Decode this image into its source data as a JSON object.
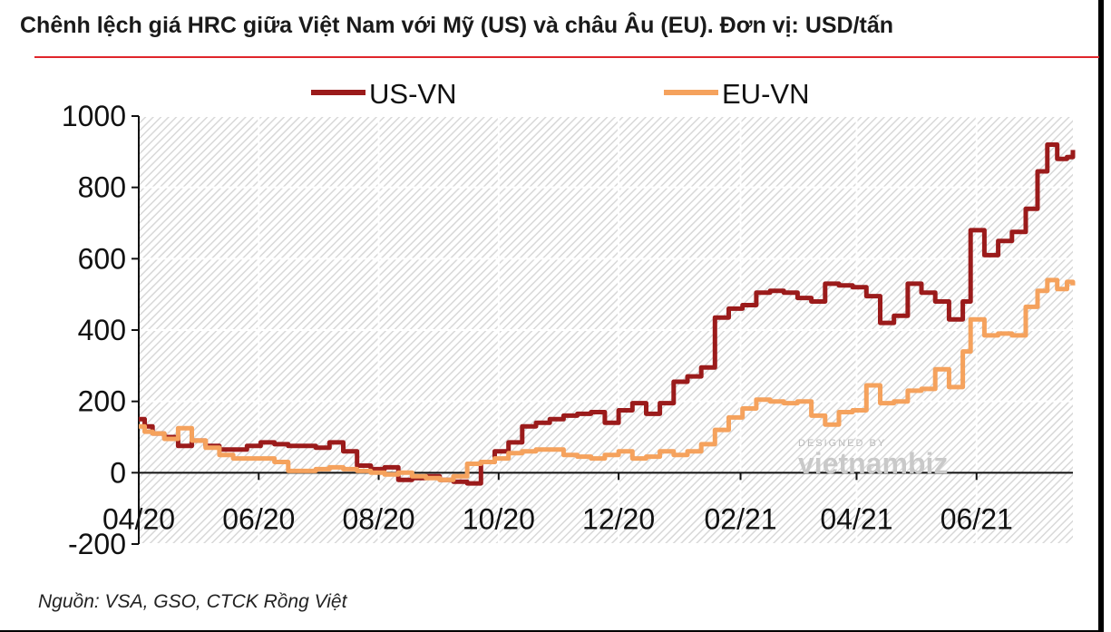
{
  "title": "Chênh lệch giá HRC giữa Việt Nam với Mỹ (US) và châu Âu (EU). Đơn vị: USD/tấn",
  "source": "Nguồn: VSA, GSO, CTCK Rồng Việt",
  "watermark": {
    "small": "DESIGNED BY",
    "big": "vietnambiz"
  },
  "colors": {
    "us_vn": "#9b1b1b",
    "eu_vn": "#f5a25d",
    "title_rule": "#e0262b"
  },
  "chart_data": {
    "type": "line",
    "title": "Chênh lệch giá HRC giữa Việt Nam với Mỹ (US) và châu Âu (EU). Đơn vị: USD/tấn",
    "xlabel": "",
    "ylabel": "",
    "ylim": [
      -200,
      1000
    ],
    "yticks": [
      -200,
      0,
      200,
      400,
      600,
      800,
      1000
    ],
    "yticklabels": [
      "-200",
      "0",
      "200",
      "400",
      "600",
      "800",
      "1000"
    ],
    "xlim": [
      "2020-04-01",
      "2021-07-20"
    ],
    "xticks": [
      "2020-04-01",
      "2020-06-01",
      "2020-08-01",
      "2020-10-01",
      "2020-12-01",
      "2021-02-01",
      "2021-04-01",
      "2021-06-01"
    ],
    "xticklabels": [
      "04/20",
      "06/20",
      "08/20",
      "10/20",
      "12/20",
      "02/21",
      "04/21",
      "06/21"
    ],
    "grid": true,
    "legend": "top",
    "series": [
      {
        "name": "US-VN",
        "points": [
          [
            "2020-04-01",
            150
          ],
          [
            "2020-04-04",
            130
          ],
          [
            "2020-04-08",
            110
          ],
          [
            "2020-04-14",
            100
          ],
          [
            "2020-04-21",
            75
          ],
          [
            "2020-04-28",
            90
          ],
          [
            "2020-05-05",
            75
          ],
          [
            "2020-05-12",
            65
          ],
          [
            "2020-05-19",
            65
          ],
          [
            "2020-05-26",
            75
          ],
          [
            "2020-06-02",
            85
          ],
          [
            "2020-06-09",
            80
          ],
          [
            "2020-06-16",
            75
          ],
          [
            "2020-06-23",
            75
          ],
          [
            "2020-06-30",
            70
          ],
          [
            "2020-07-07",
            85
          ],
          [
            "2020-07-14",
            60
          ],
          [
            "2020-07-21",
            20
          ],
          [
            "2020-07-28",
            10
          ],
          [
            "2020-08-04",
            15
          ],
          [
            "2020-08-11",
            -20
          ],
          [
            "2020-08-18",
            -15
          ],
          [
            "2020-08-25",
            -10
          ],
          [
            "2020-09-01",
            -20
          ],
          [
            "2020-09-08",
            -25
          ],
          [
            "2020-09-15",
            -30
          ],
          [
            "2020-09-22",
            30
          ],
          [
            "2020-09-29",
            60
          ],
          [
            "2020-10-06",
            85
          ],
          [
            "2020-10-13",
            130
          ],
          [
            "2020-10-20",
            140
          ],
          [
            "2020-10-27",
            150
          ],
          [
            "2020-11-03",
            160
          ],
          [
            "2020-11-10",
            165
          ],
          [
            "2020-11-17",
            170
          ],
          [
            "2020-11-24",
            140
          ],
          [
            "2020-12-01",
            175
          ],
          [
            "2020-12-08",
            195
          ],
          [
            "2020-12-15",
            165
          ],
          [
            "2020-12-22",
            195
          ],
          [
            "2020-12-29",
            255
          ],
          [
            "2021-01-05",
            270
          ],
          [
            "2021-01-12",
            295
          ],
          [
            "2021-01-19",
            435
          ],
          [
            "2021-01-26",
            460
          ],
          [
            "2021-02-02",
            470
          ],
          [
            "2021-02-09",
            505
          ],
          [
            "2021-02-16",
            510
          ],
          [
            "2021-02-23",
            505
          ],
          [
            "2021-03-02",
            490
          ],
          [
            "2021-03-09",
            480
          ],
          [
            "2021-03-16",
            530
          ],
          [
            "2021-03-23",
            525
          ],
          [
            "2021-03-30",
            520
          ],
          [
            "2021-04-06",
            495
          ],
          [
            "2021-04-13",
            420
          ],
          [
            "2021-04-20",
            440
          ],
          [
            "2021-04-27",
            530
          ],
          [
            "2021-05-04",
            505
          ],
          [
            "2021-05-11",
            480
          ],
          [
            "2021-05-18",
            430
          ],
          [
            "2021-05-25",
            480
          ],
          [
            "2021-05-29",
            680
          ],
          [
            "2021-06-05",
            610
          ],
          [
            "2021-06-12",
            650
          ],
          [
            "2021-06-19",
            675
          ],
          [
            "2021-06-26",
            740
          ],
          [
            "2021-07-02",
            845
          ],
          [
            "2021-07-07",
            920
          ],
          [
            "2021-07-12",
            880
          ],
          [
            "2021-07-17",
            885
          ],
          [
            "2021-07-20",
            905
          ]
        ]
      },
      {
        "name": "EU-VN",
        "points": [
          [
            "2020-04-01",
            130
          ],
          [
            "2020-04-04",
            115
          ],
          [
            "2020-04-08",
            110
          ],
          [
            "2020-04-14",
            95
          ],
          [
            "2020-04-21",
            125
          ],
          [
            "2020-04-28",
            90
          ],
          [
            "2020-05-05",
            70
          ],
          [
            "2020-05-12",
            50
          ],
          [
            "2020-05-19",
            40
          ],
          [
            "2020-05-26",
            40
          ],
          [
            "2020-06-02",
            40
          ],
          [
            "2020-06-09",
            30
          ],
          [
            "2020-06-16",
            5
          ],
          [
            "2020-06-23",
            5
          ],
          [
            "2020-06-30",
            10
          ],
          [
            "2020-07-07",
            15
          ],
          [
            "2020-07-14",
            10
          ],
          [
            "2020-07-21",
            5
          ],
          [
            "2020-07-28",
            0
          ],
          [
            "2020-08-04",
            -5
          ],
          [
            "2020-08-11",
            0
          ],
          [
            "2020-08-18",
            -10
          ],
          [
            "2020-08-25",
            -15
          ],
          [
            "2020-09-01",
            -20
          ],
          [
            "2020-09-08",
            -10
          ],
          [
            "2020-09-15",
            25
          ],
          [
            "2020-09-22",
            30
          ],
          [
            "2020-09-29",
            40
          ],
          [
            "2020-10-06",
            55
          ],
          [
            "2020-10-13",
            60
          ],
          [
            "2020-10-20",
            65
          ],
          [
            "2020-10-27",
            65
          ],
          [
            "2020-11-03",
            50
          ],
          [
            "2020-11-10",
            45
          ],
          [
            "2020-11-17",
            40
          ],
          [
            "2020-11-24",
            50
          ],
          [
            "2020-12-01",
            60
          ],
          [
            "2020-12-08",
            40
          ],
          [
            "2020-12-15",
            45
          ],
          [
            "2020-12-22",
            60
          ],
          [
            "2020-12-29",
            50
          ],
          [
            "2021-01-05",
            60
          ],
          [
            "2021-01-12",
            80
          ],
          [
            "2021-01-19",
            120
          ],
          [
            "2021-01-26",
            155
          ],
          [
            "2021-02-02",
            180
          ],
          [
            "2021-02-09",
            205
          ],
          [
            "2021-02-16",
            200
          ],
          [
            "2021-02-23",
            195
          ],
          [
            "2021-03-02",
            200
          ],
          [
            "2021-03-09",
            160
          ],
          [
            "2021-03-16",
            135
          ],
          [
            "2021-03-23",
            170
          ],
          [
            "2021-03-30",
            175
          ],
          [
            "2021-04-06",
            245
          ],
          [
            "2021-04-13",
            195
          ],
          [
            "2021-04-20",
            200
          ],
          [
            "2021-04-27",
            230
          ],
          [
            "2021-05-04",
            235
          ],
          [
            "2021-05-11",
            290
          ],
          [
            "2021-05-18",
            240
          ],
          [
            "2021-05-25",
            340
          ],
          [
            "2021-05-29",
            430
          ],
          [
            "2021-06-05",
            385
          ],
          [
            "2021-06-12",
            390
          ],
          [
            "2021-06-19",
            385
          ],
          [
            "2021-06-26",
            465
          ],
          [
            "2021-07-02",
            510
          ],
          [
            "2021-07-07",
            540
          ],
          [
            "2021-07-12",
            515
          ],
          [
            "2021-07-17",
            535
          ],
          [
            "2021-07-20",
            525
          ]
        ]
      }
    ]
  }
}
